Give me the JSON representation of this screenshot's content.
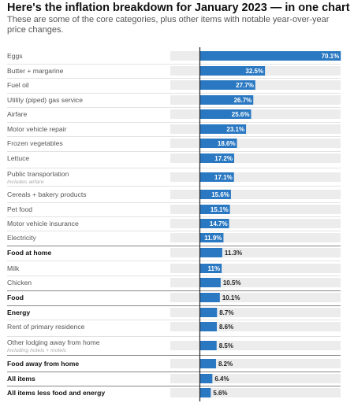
{
  "title": "Here's the inflation breakdown for January 2023 — in one chart",
  "subtitle": "These are some of the core categories, plus other items with notable year-over-year price changes.",
  "colors": {
    "bar": "#2a78c2",
    "track": "#ececec",
    "axis": "#222222",
    "divider": "#d9d9d9",
    "section_divider": "#888888"
  },
  "chart_data": {
    "type": "bar",
    "orientation": "horizontal",
    "title": "Here's the inflation breakdown for January 2023 — in one chart",
    "subtitle": "These are some of the core categories, plus other items with notable year-over-year price changes.",
    "xlim": [
      0,
      100
    ],
    "categories": [
      "Eggs",
      "Butter + margarine",
      "Fuel oil",
      "Utility (piped) gas service",
      "Airfare",
      "Motor vehicle repair",
      "Frozen vegetables",
      "Lettuce",
      "Public transportation",
      "Cereals + bakery products",
      "Pet food",
      "Motor vehicle insurance",
      "Electricity",
      "Food at home",
      "Milk",
      "Chicken",
      "Food",
      "Energy",
      "Rent of primary residence",
      "Other lodging away from home",
      "Food away from home",
      "All items",
      "All items less food and energy"
    ],
    "notes": {
      "Public transportation": "Includes airfare",
      "Other lodging away from home": "Including hotels + motels"
    },
    "bold": [
      "Food at home",
      "Food",
      "Energy",
      "Food away from home",
      "All items",
      "All items less food and energy"
    ],
    "values": [
      70.1,
      32.5,
      27.7,
      26.7,
      25.6,
      23.1,
      18.6,
      17.2,
      17.1,
      15.6,
      15.1,
      14.7,
      11.9,
      11.3,
      11,
      10.5,
      10.1,
      8.7,
      8.6,
      8.5,
      8.2,
      6.4,
      5.6
    ],
    "value_labels": [
      "70.1%",
      "32.5%",
      "27.7%",
      "26.7%",
      "25.6%",
      "23.1%",
      "18.6%",
      "17.2%",
      "17.1%",
      "15.6%",
      "15.1%",
      "14.7%",
      "11.9%",
      "11.3%",
      "11%",
      "10.5%",
      "10.1%",
      "8.7%",
      "8.6%",
      "8.5%",
      "8.2%",
      "6.4%",
      "5.6%"
    ],
    "grid": false,
    "legend": "none"
  }
}
